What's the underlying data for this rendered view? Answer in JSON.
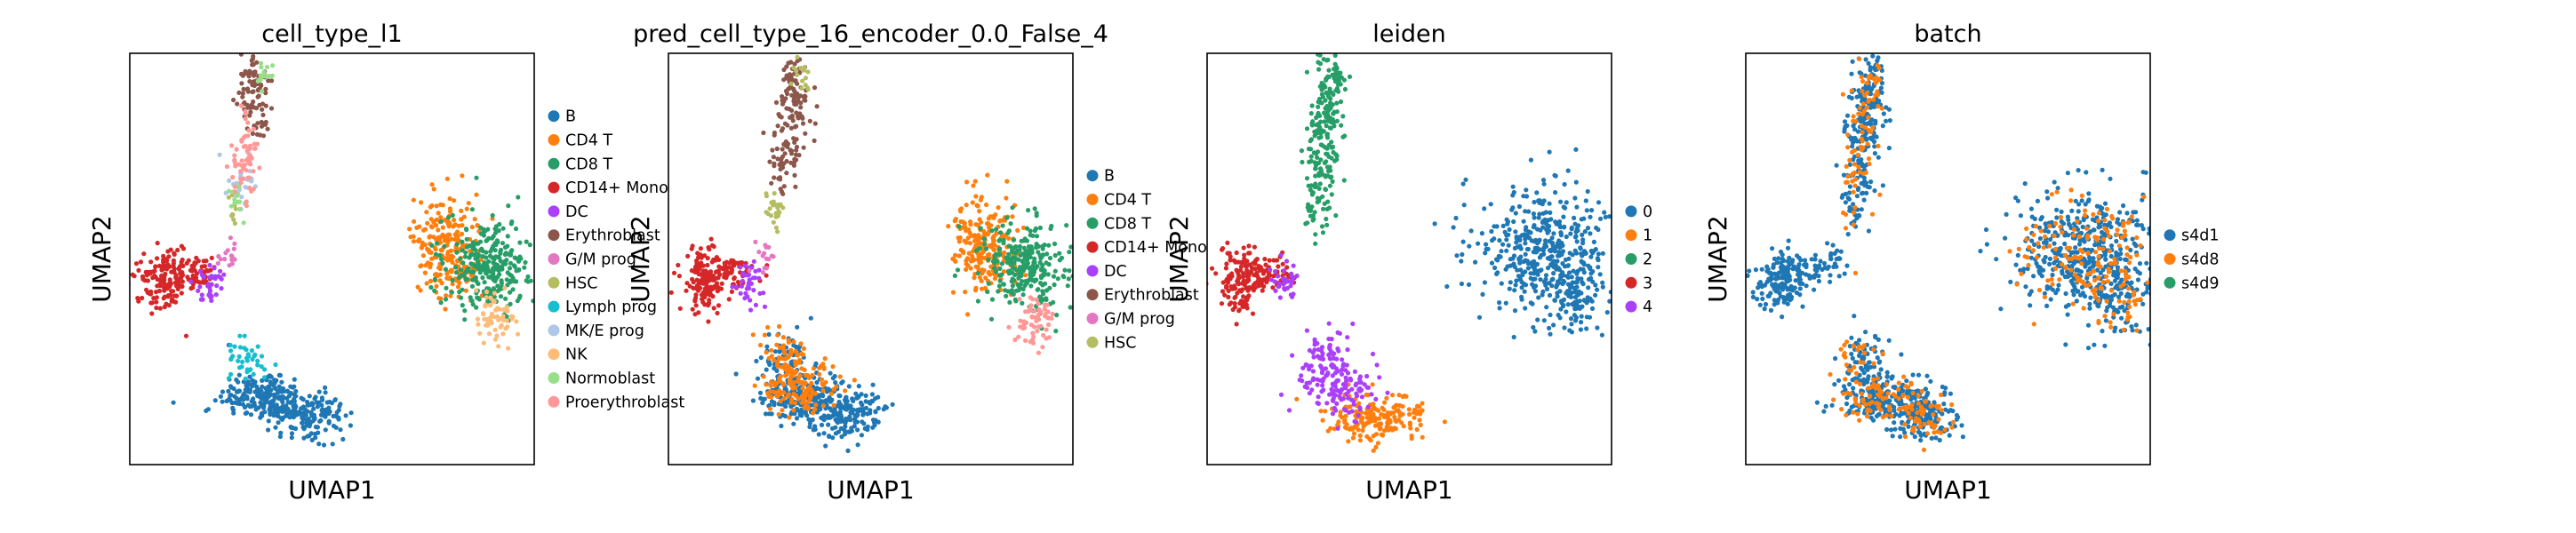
{
  "chart_data": [
    {
      "type": "scatter",
      "title": "cell_type_l1",
      "xlabel": "UMAP1",
      "ylabel": "UMAP2",
      "legend_position": "right",
      "grid": false,
      "series": [
        {
          "name": "B",
          "color": "#1f77b4"
        },
        {
          "name": "CD4 T",
          "color": "#ff7f0e"
        },
        {
          "name": "CD8 T",
          "color": "#279e68"
        },
        {
          "name": "CD14+ Mono",
          "color": "#d62728"
        },
        {
          "name": "DC",
          "color": "#aa40fc"
        },
        {
          "name": "Erythroblast",
          "color": "#8c564b"
        },
        {
          "name": "G/M prog",
          "color": "#e377c2"
        },
        {
          "name": "HSC",
          "color": "#b5bd61"
        },
        {
          "name": "Lymph prog",
          "color": "#17becf"
        },
        {
          "name": "MK/E prog",
          "color": "#aec7e8"
        },
        {
          "name": "NK",
          "color": "#ffbb78"
        },
        {
          "name": "Normoblast",
          "color": "#98df8a"
        },
        {
          "name": "Proerythroblast",
          "color": "#ff9896"
        }
      ]
    },
    {
      "type": "scatter",
      "title": "pred_cell_type_16_encoder_0.0_False_4",
      "xlabel": "UMAP1",
      "ylabel": "UMAP2",
      "legend_position": "right",
      "grid": false,
      "series": [
        {
          "name": "B",
          "color": "#1f77b4"
        },
        {
          "name": "CD4 T",
          "color": "#ff7f0e"
        },
        {
          "name": "CD8 T",
          "color": "#279e68"
        },
        {
          "name": "CD14+ Mono",
          "color": "#d62728"
        },
        {
          "name": "DC",
          "color": "#aa40fc"
        },
        {
          "name": "Erythroblast",
          "color": "#8c564b"
        },
        {
          "name": "G/M prog",
          "color": "#e377c2"
        },
        {
          "name": "HSC",
          "color": "#b5bd61"
        }
      ]
    },
    {
      "type": "scatter",
      "title": "leiden",
      "xlabel": "UMAP1",
      "ylabel": "UMAP2",
      "legend_position": "right",
      "grid": false,
      "series": [
        {
          "name": "0",
          "color": "#1f77b4"
        },
        {
          "name": "1",
          "color": "#ff7f0e"
        },
        {
          "name": "2",
          "color": "#279e68"
        },
        {
          "name": "3",
          "color": "#d62728"
        },
        {
          "name": "4",
          "color": "#aa40fc"
        }
      ]
    },
    {
      "type": "scatter",
      "title": "batch",
      "xlabel": "UMAP1",
      "ylabel": "UMAP2",
      "legend_position": "right",
      "grid": false,
      "series": [
        {
          "name": "s4d1",
          "color": "#1f77b4"
        },
        {
          "name": "s4d8",
          "color": "#ff7f0e"
        },
        {
          "name": "s4d9",
          "color": "#279e68"
        }
      ]
    }
  ]
}
